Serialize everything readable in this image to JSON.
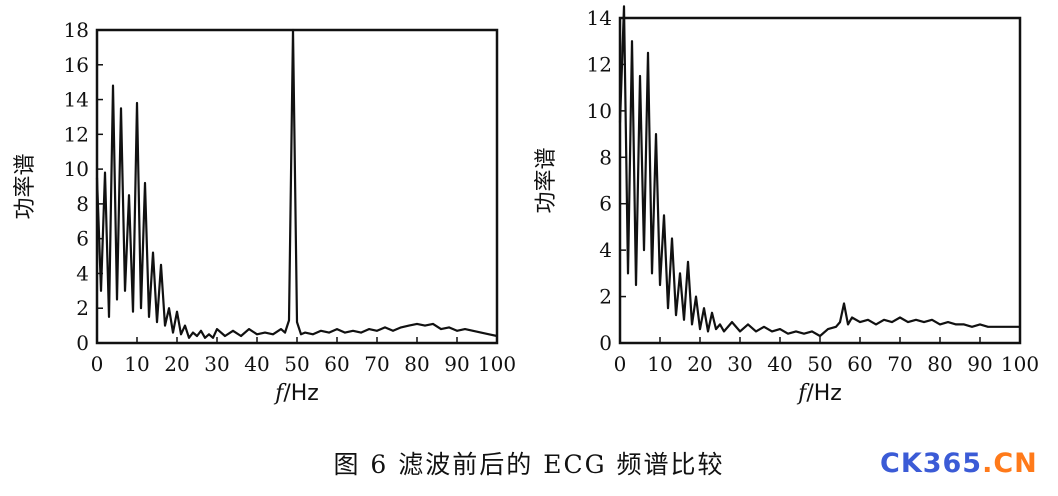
{
  "caption": "图 6   滤波前后的 ECG 频谱比较",
  "logo": {
    "part1": "CK365",
    "part2": ".CN",
    "color1": "#3b5bd6",
    "color2": "#ff7a1a"
  },
  "chart_data": [
    {
      "type": "line",
      "title": "",
      "ylabel": "功率谱",
      "xlabel_italic": "f",
      "xlabel_unit": "/Hz",
      "xlim": [
        0,
        100
      ],
      "ylim": [
        0,
        18
      ],
      "xticks": [
        0,
        10,
        20,
        30,
        40,
        50,
        60,
        70,
        80,
        90,
        100
      ],
      "yticks": [
        0,
        2,
        4,
        6,
        8,
        10,
        12,
        14,
        16,
        18
      ],
      "grid": false,
      "series": [
        {
          "x": [
            0,
            1,
            2,
            3,
            4,
            5,
            6,
            7,
            8,
            9,
            10,
            11,
            12,
            13,
            14,
            15,
            16,
            17,
            18,
            19,
            20,
            21,
            22,
            23,
            24,
            25,
            26,
            27,
            28,
            29,
            30,
            32,
            34,
            36,
            38,
            40,
            42,
            44,
            46,
            47,
            48,
            49,
            50,
            51,
            52,
            54,
            56,
            58,
            60,
            62,
            64,
            66,
            68,
            70,
            72,
            74,
            76,
            78,
            80,
            82,
            84,
            86,
            88,
            90,
            92,
            94,
            96,
            98,
            100
          ],
          "y": [
            9.5,
            3.0,
            9.8,
            1.5,
            14.8,
            2.5,
            13.5,
            3.0,
            8.5,
            1.8,
            13.8,
            2.0,
            9.2,
            1.5,
            5.2,
            1.2,
            4.5,
            1.0,
            2.0,
            0.6,
            1.8,
            0.5,
            1.0,
            0.3,
            0.6,
            0.4,
            0.7,
            0.3,
            0.5,
            0.3,
            0.8,
            0.4,
            0.7,
            0.4,
            0.8,
            0.5,
            0.6,
            0.5,
            0.8,
            0.6,
            1.3,
            18.0,
            1.2,
            0.5,
            0.6,
            0.5,
            0.7,
            0.6,
            0.8,
            0.6,
            0.7,
            0.6,
            0.8,
            0.7,
            0.9,
            0.7,
            0.9,
            1.0,
            1.1,
            1.0,
            1.1,
            0.8,
            0.9,
            0.7,
            0.8,
            0.7,
            0.6,
            0.5,
            0.4
          ]
        }
      ]
    },
    {
      "type": "line",
      "title": "",
      "ylabel": "功率谱",
      "xlabel_italic": "f",
      "xlabel_unit": "/Hz",
      "xlim": [
        0,
        100
      ],
      "ylim": [
        0,
        14
      ],
      "xticks": [
        0,
        10,
        20,
        30,
        40,
        50,
        60,
        70,
        80,
        90,
        100
      ],
      "yticks": [
        0,
        2,
        4,
        6,
        8,
        10,
        12,
        14
      ],
      "grid": false,
      "series": [
        {
          "x": [
            0,
            1,
            2,
            3,
            4,
            5,
            6,
            7,
            8,
            9,
            10,
            11,
            12,
            13,
            14,
            15,
            16,
            17,
            18,
            19,
            20,
            21,
            22,
            23,
            24,
            25,
            26,
            28,
            30,
            32,
            34,
            36,
            38,
            40,
            42,
            44,
            46,
            48,
            50,
            52,
            54,
            55,
            56,
            57,
            58,
            60,
            62,
            64,
            66,
            68,
            70,
            72,
            74,
            76,
            78,
            80,
            82,
            84,
            86,
            88,
            90,
            92,
            94,
            96,
            98,
            100
          ],
          "y": [
            9.5,
            14.5,
            3.0,
            13.0,
            2.5,
            11.5,
            4.0,
            12.5,
            3.0,
            9.0,
            2.5,
            5.5,
            1.5,
            4.5,
            1.2,
            3.0,
            1.0,
            3.5,
            0.8,
            2.0,
            0.6,
            1.5,
            0.5,
            1.3,
            0.6,
            0.8,
            0.5,
            0.9,
            0.5,
            0.8,
            0.5,
            0.7,
            0.5,
            0.6,
            0.4,
            0.5,
            0.4,
            0.5,
            0.3,
            0.6,
            0.7,
            0.9,
            1.7,
            0.8,
            1.1,
            0.9,
            1.0,
            0.8,
            1.0,
            0.9,
            1.1,
            0.9,
            1.0,
            0.9,
            1.0,
            0.8,
            0.9,
            0.8,
            0.8,
            0.7,
            0.8,
            0.7,
            0.7,
            0.7,
            0.7,
            0.7
          ]
        }
      ]
    }
  ]
}
